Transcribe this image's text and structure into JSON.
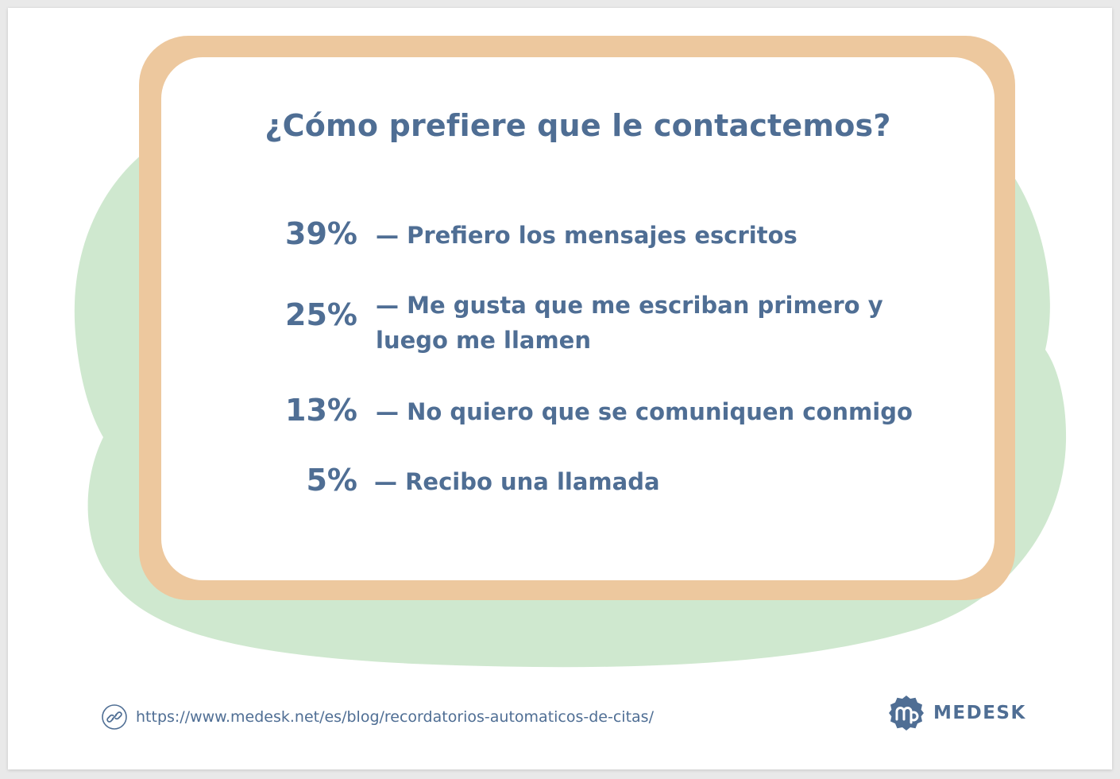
{
  "title": "¿Cómo prefiere que le contactemos?",
  "items": [
    {
      "percent": "39%",
      "text": "— Prefiero los mensajes escritos"
    },
    {
      "percent": "25%",
      "text": "— Me gusta que me escriban primero y luego me llamen"
    },
    {
      "percent": "13%",
      "text": "— No quiero que se comuniquen conmigo"
    },
    {
      "percent": "5%",
      "text": "— Recibo una llamada"
    }
  ],
  "footer": {
    "link_icon": "link-icon",
    "url": "https://www.medesk.net/es/blog/recordatorios-automaticos-de-citas/"
  },
  "brand": {
    "logo_icon": "medesk-logo-icon",
    "name": "MEDESK"
  },
  "colors": {
    "text": "#4f6e94",
    "frame": "#edc89e",
    "blob": "#cfe8cf",
    "card": "#ffffff"
  }
}
